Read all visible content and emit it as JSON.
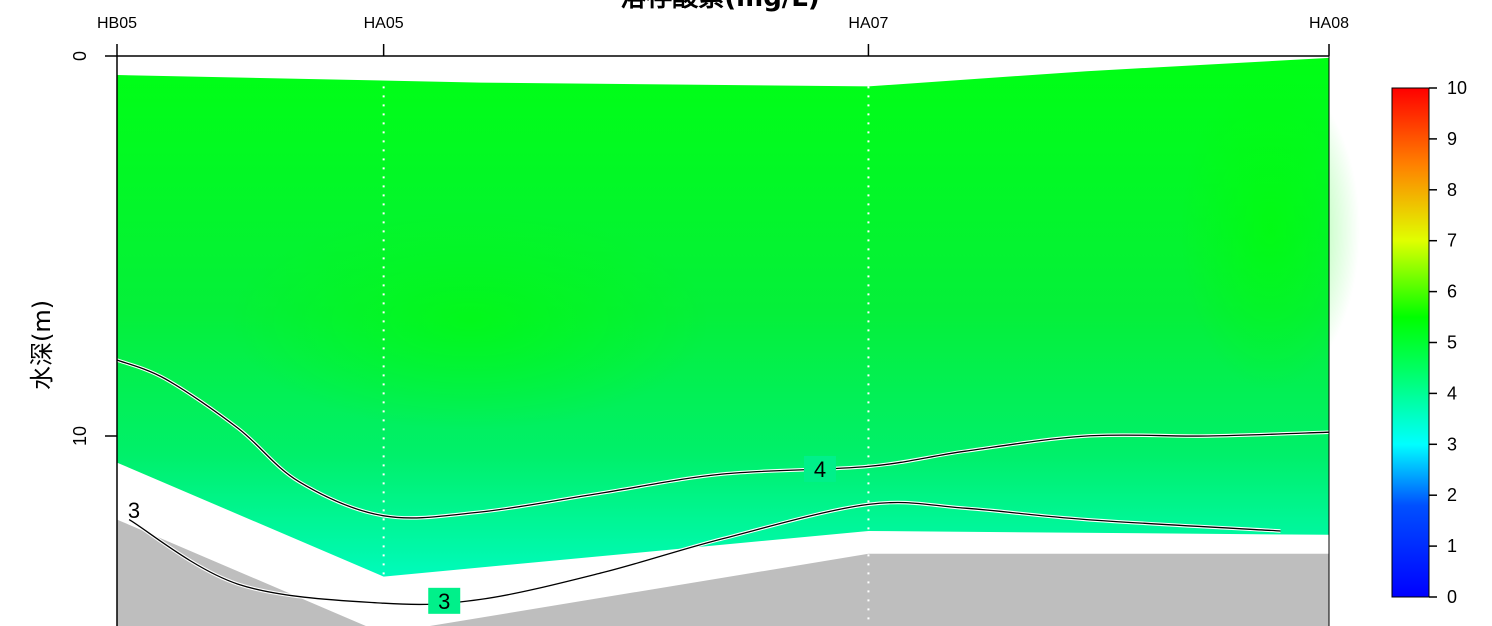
{
  "chart_data": {
    "type": "heatmap",
    "title": "溶存酸素(mg/L)",
    "ylabel": "水深(m)",
    "stations": [
      "HB05",
      "HA05",
      "HA07",
      "HA08"
    ],
    "station_distance": [
      0,
      2.2,
      6.2,
      10
    ],
    "x_range": [
      0,
      10
    ],
    "ylim": [
      15,
      0
    ],
    "y_ticks": [
      0,
      10
    ],
    "colorbar": {
      "range": [
        0,
        10
      ],
      "ticks": [
        0,
        1,
        2,
        3,
        4,
        5,
        6,
        7,
        8,
        9,
        10
      ],
      "scale": "rainbow blue-to-red",
      "colors": {
        "low": "#0000ff",
        "mid": "#00ff00",
        "high": "#ff0000",
        "seabed": "#bebebe"
      }
    },
    "contours": [
      {
        "level": 4,
        "label": "4",
        "x": [
          0,
          0.4,
          1,
          1.5,
          2.2,
          3,
          4,
          5,
          6.2,
          7,
          8,
          9,
          10
        ],
        "y": [
          8.0,
          8.5,
          9.8,
          11.2,
          12.1,
          12.0,
          11.5,
          11.0,
          10.8,
          10.4,
          10.0,
          10.0,
          9.9
        ],
        "label_at": 5.8
      },
      {
        "level": 3,
        "label": "3",
        "x": [
          0.1,
          1,
          2.2,
          3,
          4,
          5,
          6.2,
          7,
          8,
          9.6
        ],
        "y": [
          12.2,
          13.9,
          14.4,
          14.3,
          13.6,
          12.7,
          11.8,
          11.9,
          12.2,
          12.5
        ],
        "label_at": 2.7
      }
    ],
    "seabed_depth": {
      "x": [
        0,
        2.2,
        6.2,
        10
      ],
      "y": [
        12.2,
        15.2,
        13.1,
        13.1
      ]
    }
  }
}
